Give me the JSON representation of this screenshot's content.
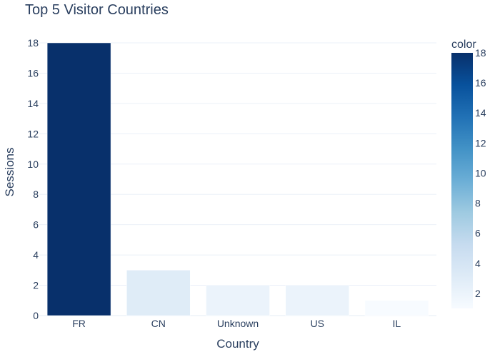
{
  "chart_data": {
    "type": "bar",
    "title": "Top 5 Visitor Countries",
    "xlabel": "Country",
    "ylabel": "Sessions",
    "categories": [
      "FR",
      "CN",
      "Unknown",
      "US",
      "IL"
    ],
    "values": [
      18,
      3,
      2,
      2,
      1
    ],
    "ylim": [
      0,
      18
    ],
    "yticks": [
      0,
      2,
      4,
      6,
      8,
      10,
      12,
      14,
      16,
      18
    ],
    "grid": true,
    "colorbar": {
      "title": "color",
      "range": [
        1,
        18
      ],
      "ticks": [
        2,
        4,
        6,
        8,
        10,
        12,
        14,
        16,
        18
      ],
      "colorscale": [
        "#f7fbff",
        "#deebf7",
        "#c6dbef",
        "#9ecae1",
        "#6baed6",
        "#4292c6",
        "#2171b5",
        "#08519c",
        "#08306b"
      ]
    }
  }
}
